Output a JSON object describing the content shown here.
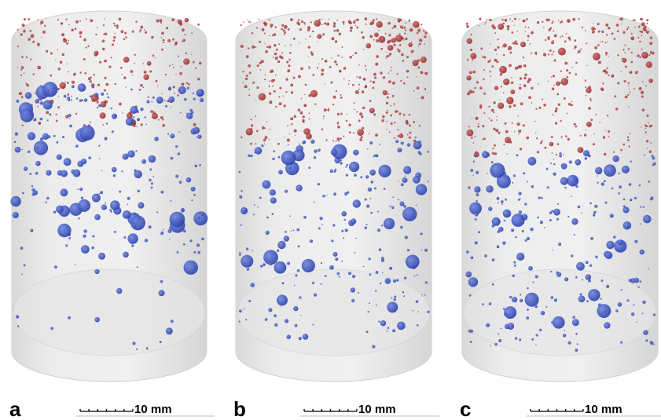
{
  "panels": [
    {
      "label": "a",
      "scale_label": "10 mm"
    },
    {
      "label": "b",
      "scale_label": "10 mm"
    },
    {
      "label": "c",
      "scale_label": "10 mm"
    }
  ]
}
